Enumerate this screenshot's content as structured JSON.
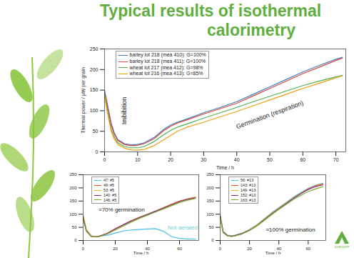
{
  "title_lines": [
    "Typical results of isothermal",
    "calorimetry"
  ],
  "logo_text": "AGROVIST",
  "chart_data": [
    {
      "type": "line",
      "xlabel": "Time / h",
      "ylabel": "Thermal power / µW per grain",
      "xlim": [
        0,
        73
      ],
      "xticks": [
        0,
        10,
        20,
        30,
        40,
        50,
        60,
        70
      ],
      "ylim": [
        0,
        250
      ],
      "yticks": [
        0,
        50,
        100,
        150,
        200,
        250
      ],
      "grid": false,
      "legend": "top-left",
      "x": [
        0,
        1,
        2,
        3,
        4,
        6,
        8,
        10,
        12,
        15,
        18,
        20,
        22,
        25,
        30,
        35,
        40,
        45,
        50,
        55,
        60,
        65,
        70,
        72
      ],
      "series": [
        {
          "name": "barley lot 218 (mea 410): G=100%",
          "color": "#3b7ec4",
          "values": [
            150,
            110,
            70,
            45,
            30,
            20,
            17,
            18,
            22,
            35,
            55,
            65,
            72,
            80,
            95,
            108,
            122,
            140,
            158,
            176,
            194,
            210,
            225,
            230
          ]
        },
        {
          "name": "barley lot 218 (mea 411): G=100%",
          "color": "#d9453a",
          "values": [
            145,
            105,
            65,
            42,
            28,
            18,
            15,
            16,
            20,
            32,
            52,
            62,
            70,
            78,
            92,
            105,
            118,
            136,
            154,
            172,
            190,
            206,
            222,
            228
          ]
        },
        {
          "name": "wheat lot 217 (mea 412): G=98%",
          "color": "#4caf50",
          "values": [
            140,
            95,
            55,
            35,
            22,
            13,
            10,
            10,
            13,
            25,
            42,
            52,
            60,
            68,
            82,
            95,
            108,
            122,
            135,
            148,
            161,
            172,
            182,
            186
          ]
        },
        {
          "name": "wheat lot 216 (mea 413): G=85%",
          "color": "#f39c12",
          "values": [
            135,
            90,
            50,
            30,
            18,
            9,
            5,
            4,
            6,
            15,
            30,
            40,
            50,
            60,
            72,
            85,
            98,
            112,
            126,
            140,
            154,
            167,
            180,
            185
          ]
        }
      ],
      "annotations": [
        {
          "text": "Imbibition",
          "x": 6,
          "y": 100,
          "color": "#222222"
        },
        {
          "text": "Germination (respiration)",
          "x": 50,
          "y": 90,
          "color": "#222222"
        }
      ]
    },
    {
      "type": "line",
      "xlabel": "Time / h",
      "xlim": [
        0,
        72
      ],
      "xticks": [
        0,
        20,
        40,
        60
      ],
      "ylim": [
        0,
        250
      ],
      "yticks": [
        0,
        50,
        100,
        150,
        200,
        250
      ],
      "grid": false,
      "legend": "top-left",
      "x": [
        0,
        2,
        5,
        8,
        10,
        15,
        20,
        25,
        30,
        35,
        40,
        45,
        50,
        55,
        60,
        65,
        70
      ],
      "series": [
        {
          "name": "47: #5",
          "color": "#4dbeee",
          "values": [
            90,
            40,
            18,
            15,
            16,
            20,
            28,
            36,
            40,
            42,
            44,
            45,
            35,
            15,
            8,
            6,
            5
          ]
        },
        {
          "name": "49: #5",
          "color": "#d95319",
          "values": [
            95,
            40,
            17,
            15,
            17,
            28,
            45,
            60,
            75,
            88,
            100,
            112,
            125,
            138,
            150,
            158,
            165
          ]
        },
        {
          "name": "53: #5",
          "color": "#edb120",
          "values": [
            90,
            38,
            16,
            14,
            16,
            26,
            42,
            58,
            72,
            86,
            98,
            110,
            122,
            135,
            147,
            156,
            163
          ]
        },
        {
          "name": "140: #5",
          "color": "#7e2f8e",
          "values": [
            85,
            36,
            15,
            14,
            16,
            26,
            44,
            60,
            74,
            87,
            99,
            111,
            123,
            136,
            148,
            157,
            162
          ]
        },
        {
          "name": "146: #5",
          "color": "#77ac30",
          "values": [
            80,
            35,
            15,
            13,
            15,
            25,
            40,
            55,
            70,
            84,
            96,
            108,
            120,
            132,
            144,
            153,
            160
          ]
        }
      ],
      "annotations": [
        {
          "text": "≈70% germination",
          "x": 24,
          "y": 118,
          "color": "#222222"
        },
        {
          "text": "Not aerated",
          "x": 62,
          "y": 50,
          "color": "#6fd0d8"
        }
      ]
    },
    {
      "type": "line",
      "xlabel": "Time / h",
      "xlim": [
        0,
        72
      ],
      "xticks": [
        0,
        20,
        40,
        60
      ],
      "ylim": [
        0,
        250
      ],
      "yticks": [
        0,
        50,
        100,
        150,
        200,
        250
      ],
      "grid": false,
      "legend": "top-left",
      "x": [
        0,
        2,
        5,
        8,
        10,
        15,
        20,
        25,
        30,
        35,
        40,
        45,
        50,
        55,
        60,
        65,
        70
      ],
      "series": [
        {
          "name": "56: #13",
          "color": "#4dbeee",
          "values": [
            100,
            35,
            20,
            18,
            20,
            28,
            42,
            60,
            82,
            105,
            125,
            145,
            165,
            182,
            198,
            210,
            218
          ]
        },
        {
          "name": "143: #13",
          "color": "#d95319",
          "values": [
            95,
            34,
            19,
            17,
            19,
            27,
            40,
            58,
            80,
            102,
            122,
            142,
            162,
            180,
            196,
            208,
            215
          ]
        },
        {
          "name": "149: #13",
          "color": "#edb120",
          "values": [
            90,
            32,
            18,
            16,
            18,
            26,
            40,
            58,
            80,
            102,
            122,
            142,
            161,
            179,
            195,
            206,
            214
          ]
        },
        {
          "name": "152: #13",
          "color": "#7e2f8e",
          "values": [
            90,
            32,
            18,
            16,
            18,
            26,
            39,
            56,
            78,
            100,
            120,
            140,
            160,
            178,
            194,
            205,
            212
          ]
        },
        {
          "name": "163: #13",
          "color": "#77ac30",
          "values": [
            85,
            30,
            17,
            15,
            17,
            25,
            38,
            55,
            76,
            98,
            118,
            137,
            156,
            172,
            186,
            196,
            205
          ]
        }
      ],
      "annotations": [
        {
          "text": "≈100% germination",
          "x": 48,
          "y": 42,
          "color": "#222222"
        }
      ]
    }
  ]
}
